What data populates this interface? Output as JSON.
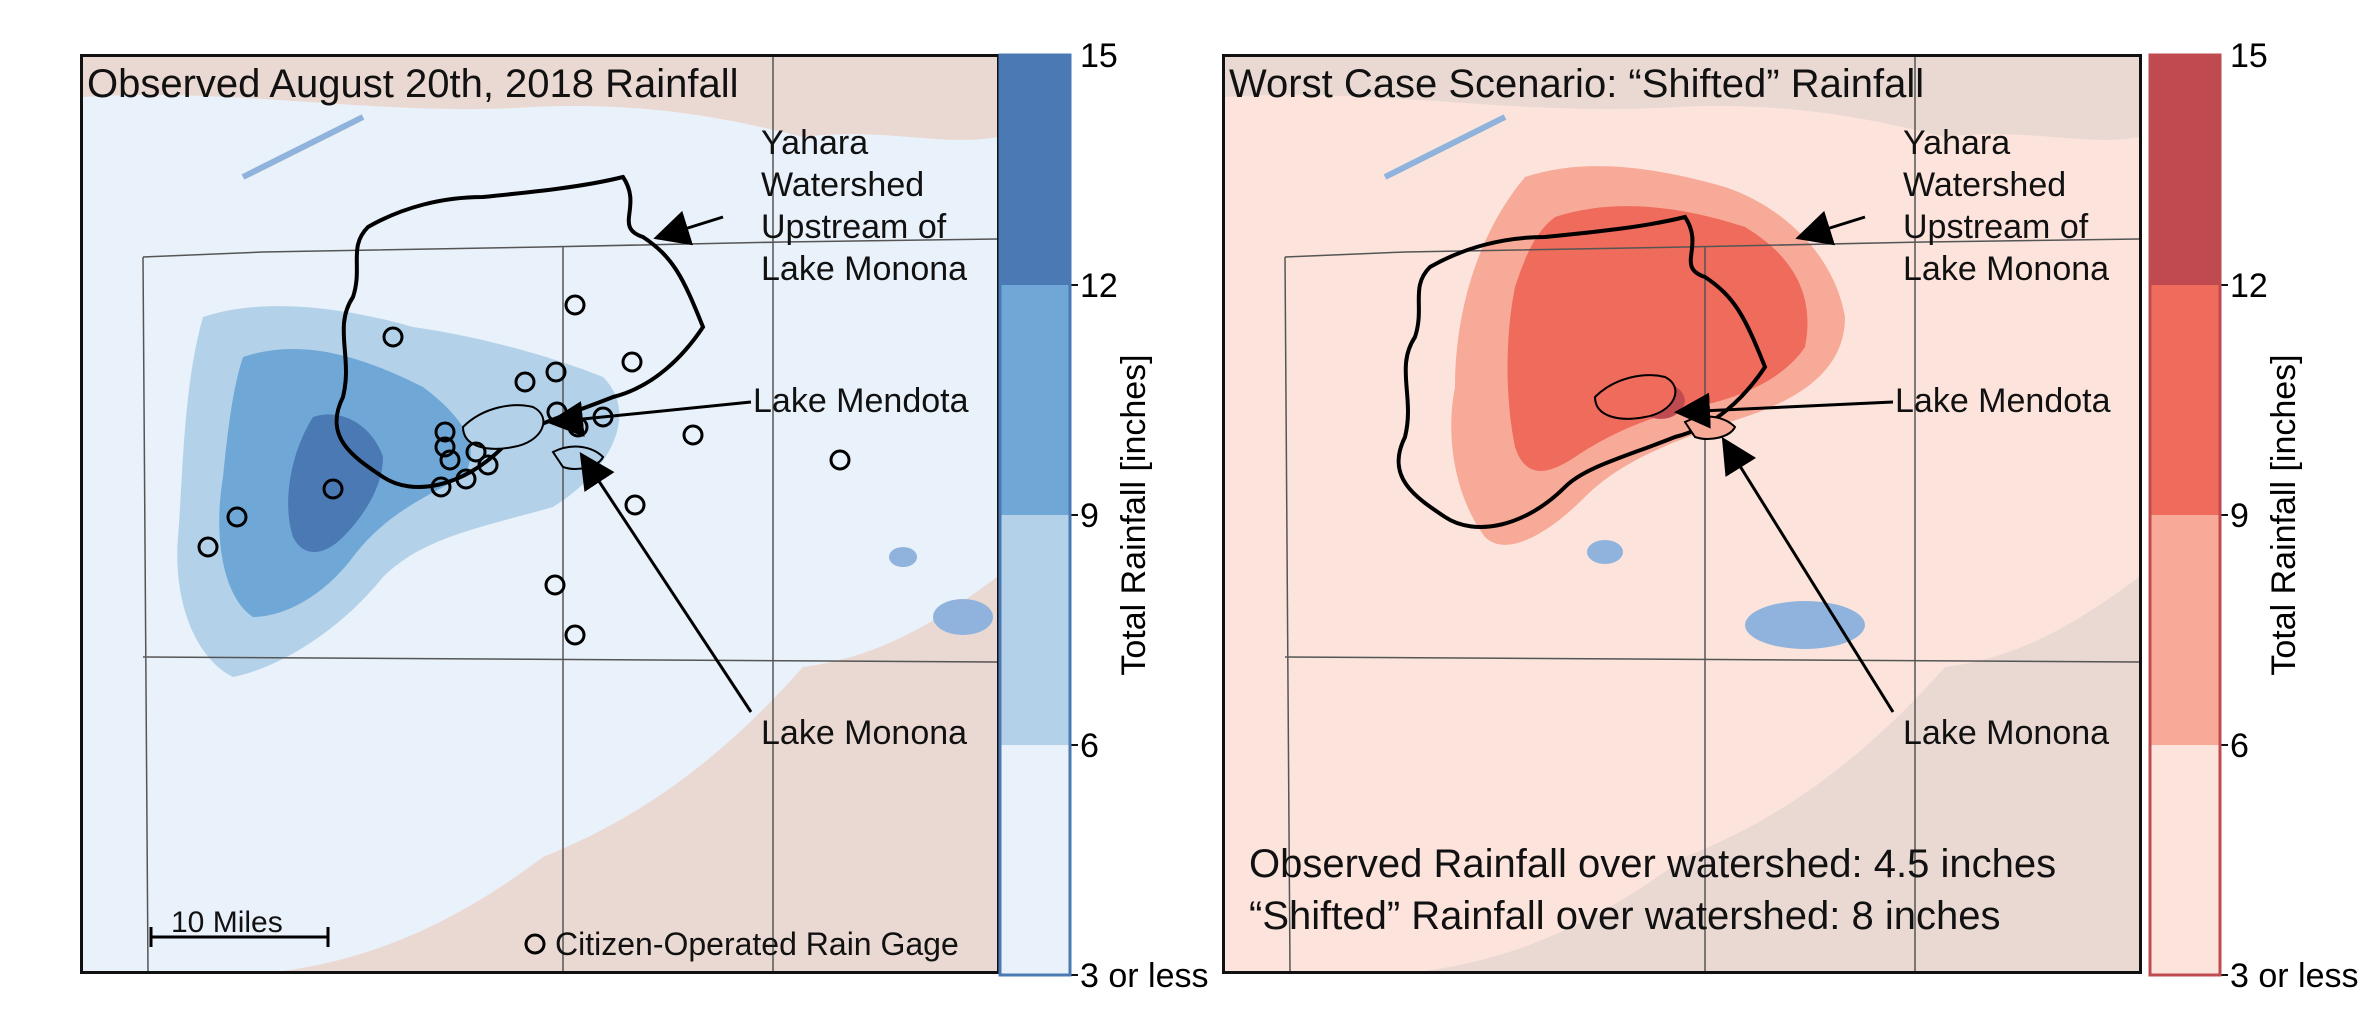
{
  "left_panel": {
    "title": "Observed August 20th, 2018 Rainfall",
    "labels": {
      "watershed": "Yahara\nWatershed\nUpstream of\nLake Monona",
      "mendota": "Lake Mendota",
      "monona": "Lake Monona"
    },
    "scale_bar": "10 Miles",
    "legend_gage": "Citizen-Operated Rain Gage"
  },
  "right_panel": {
    "title": "Worst Case Scenario: “Shifted” Rainfall",
    "labels": {
      "watershed": "Yahara\nWatershed\nUpstream of\nLake Monona",
      "mendota": "Lake Mendota",
      "monona": "Lake Monona"
    },
    "summary_observed": "Observed Rainfall over watershed: 4.5 inches",
    "summary_shifted": "“Shifted” Rainfall over watershed: 8 inches"
  },
  "colorbar_left": {
    "label": "Total Rainfall [inches]",
    "ticks": [
      "15",
      "12",
      "9",
      "6",
      "3 or less"
    ],
    "colors": [
      "#e9f1fa",
      "#b3d2ea",
      "#6fa8d6",
      "#4a79b4"
    ],
    "outline": "#4a79b4"
  },
  "colorbar_right": {
    "label": "Total Rainfall [inches]",
    "ticks": [
      "15",
      "12",
      "9",
      "6",
      "3 or less"
    ],
    "colors": [
      "#fce4dc",
      "#f8aa98",
      "#ef6b5b",
      "#bf4b50"
    ],
    "outline": "#bf4b50"
  },
  "colors": {
    "land": "#ead9d3",
    "water": "#8fb3dc",
    "watershed_outline": "#000000"
  }
}
